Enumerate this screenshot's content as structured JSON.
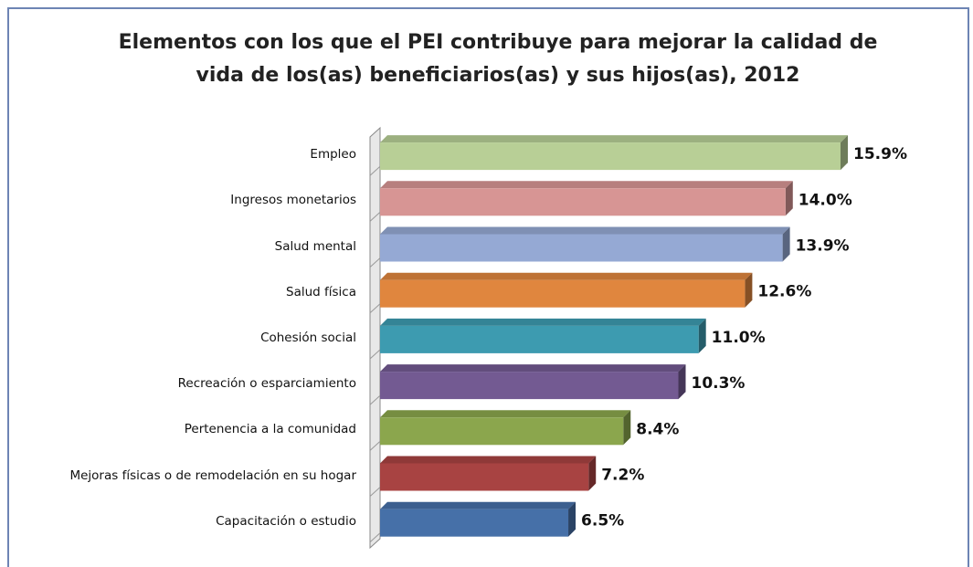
{
  "chart_data": {
    "type": "bar",
    "orientation": "horizontal",
    "title_lines": [
      "Elementos con los que el PEI contribuye para mejorar la calidad de",
      "vida de los(as) beneficiarios(as) y sus hijos(as), 2012"
    ],
    "categories": [
      "Empleo",
      "Ingresos monetarios",
      "Salud mental",
      "Salud física",
      "Cohesión social",
      "Recreación o esparciamiento",
      "Pertenencia a la comunidad",
      "Mejoras físicas o de remodelación en su hogar",
      "Capacitación o estudio"
    ],
    "values": [
      15.9,
      14.0,
      13.9,
      12.6,
      11.0,
      10.3,
      8.4,
      7.2,
      6.5
    ],
    "value_labels": [
      "15.9%",
      "14.0%",
      "13.9%",
      "12.6%",
      "11.0%",
      "10.3%",
      "8.4%",
      "7.2%",
      "6.5%"
    ],
    "colors": [
      "#b8cf96",
      "#d79594",
      "#95a9d4",
      "#e0863e",
      "#3d9bb0",
      "#735a92",
      "#8ba64d",
      "#a84342",
      "#4670a8"
    ]
  }
}
